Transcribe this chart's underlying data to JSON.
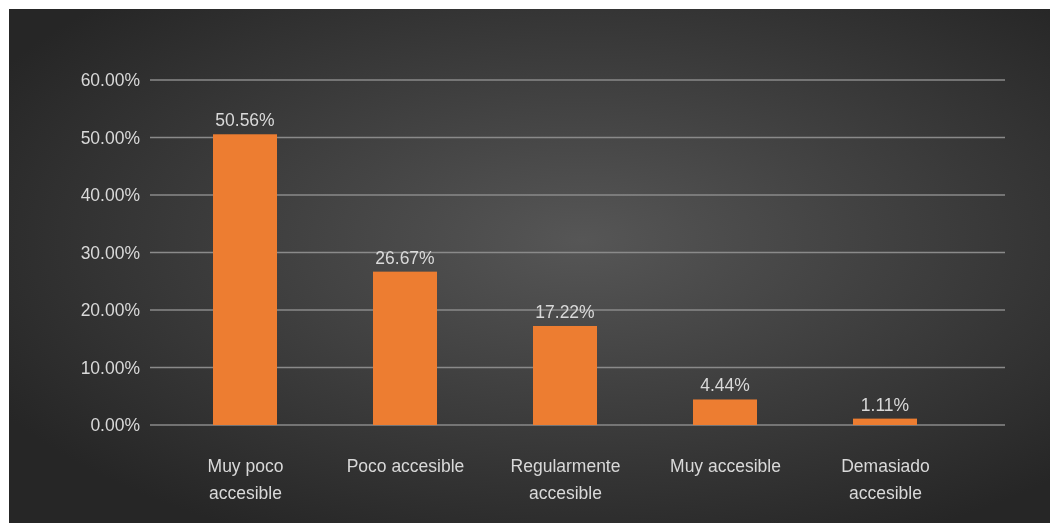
{
  "chart_data": {
    "type": "bar",
    "categories": [
      "Muy poco accesible",
      "Poco accesible",
      "Regularmente accesible",
      "Muy accesible",
      "Demasiado accesible"
    ],
    "values": [
      50.56,
      26.67,
      17.22,
      4.44,
      1.11
    ],
    "color": "#ed7d31",
    "value_labels": [
      "50.56%",
      "26.67%",
      "17.22%",
      "4.44%",
      "1.11%"
    ],
    "ylim": [
      0,
      60
    ],
    "yticks": [
      {
        "value": 0,
        "label": "0.00%"
      },
      {
        "value": 10,
        "label": "10.00%"
      },
      {
        "value": 20,
        "label": "20.00%"
      },
      {
        "value": 30,
        "label": "30.00%"
      },
      {
        "value": 40,
        "label": "40.00%"
      },
      {
        "value": 50,
        "label": "50.00%"
      },
      {
        "value": 60,
        "label": "60.00%"
      }
    ],
    "grid": "y"
  }
}
